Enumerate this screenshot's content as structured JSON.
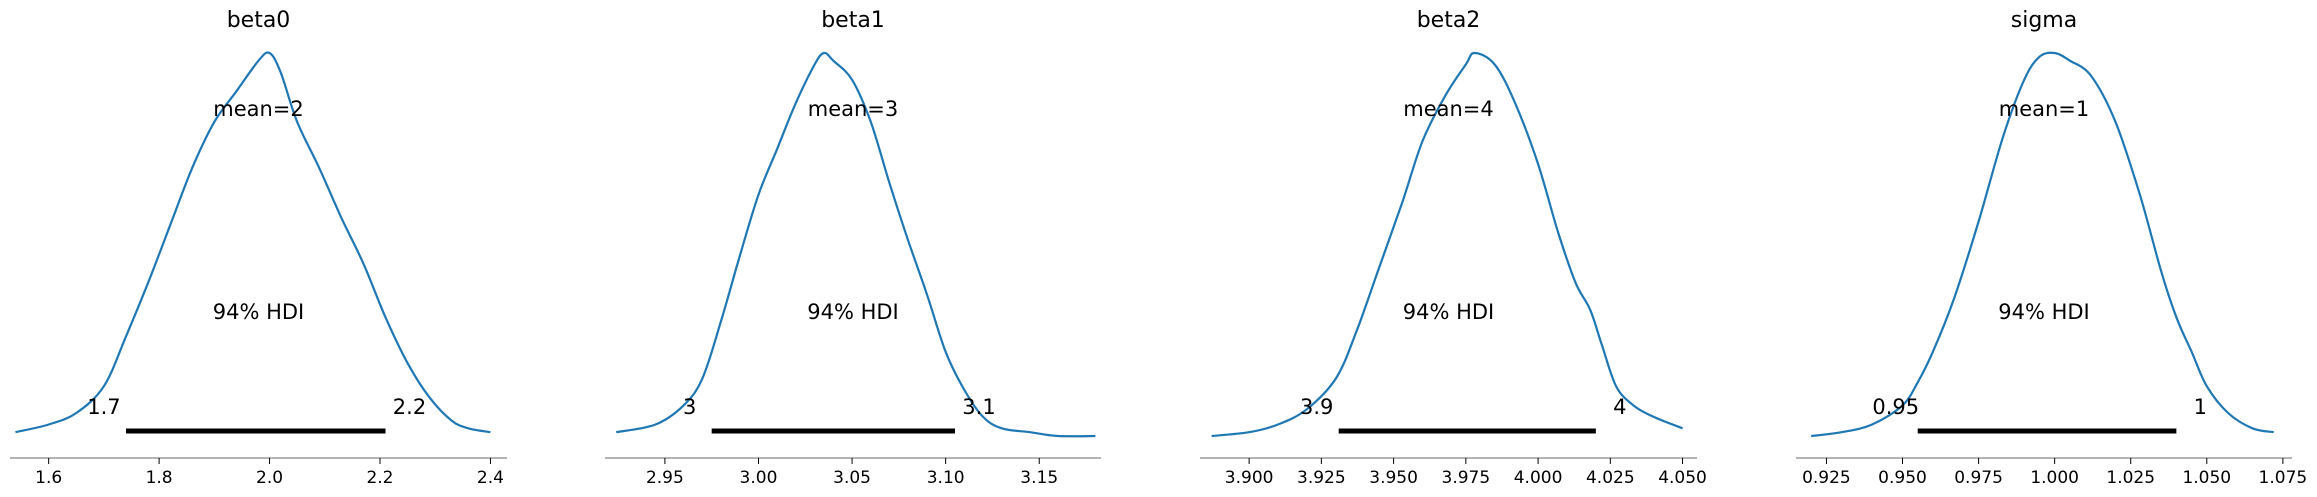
{
  "chart_data": [
    {
      "type": "area",
      "title": "beta0",
      "xlim": [
        1.53,
        2.43
      ],
      "xticks": [
        "1.6",
        "1.8",
        "2.0",
        "2.2",
        "2.4"
      ],
      "mean_label": "mean=2",
      "hdi_label": "94% HDI",
      "hdi": [
        1.74,
        2.21
      ],
      "hdi_labels": [
        "1.7",
        "2.2"
      ],
      "x": [
        1.54,
        1.6,
        1.65,
        1.7,
        1.74,
        1.78,
        1.82,
        1.86,
        1.9,
        1.94,
        1.98,
        2.0,
        2.02,
        2.05,
        2.09,
        2.13,
        2.17,
        2.21,
        2.25,
        2.29,
        2.33,
        2.36,
        2.4
      ],
      "density": [
        0.01,
        0.03,
        0.06,
        0.13,
        0.26,
        0.4,
        0.55,
        0.7,
        0.82,
        0.9,
        0.98,
        1.0,
        0.95,
        0.82,
        0.7,
        0.57,
        0.45,
        0.31,
        0.19,
        0.1,
        0.04,
        0.02,
        0.01
      ]
    },
    {
      "type": "area",
      "title": "beta1",
      "xlim": [
        2.918,
        3.183
      ],
      "xticks": [
        "2.95",
        "3.00",
        "3.05",
        "3.10",
        "3.15"
      ],
      "mean_label": "mean=3",
      "hdi_label": "94% HDI",
      "hdi": [
        2.975,
        3.105
      ],
      "hdi_labels": [
        "3",
        "3.1"
      ],
      "x": [
        2.924,
        2.945,
        2.96,
        2.97,
        2.98,
        2.99,
        3.0,
        3.01,
        3.02,
        3.03,
        3.035,
        3.04,
        3.05,
        3.06,
        3.07,
        3.08,
        3.09,
        3.1,
        3.11,
        3.12,
        3.13,
        3.145,
        3.16,
        3.18
      ],
      "density": [
        0.01,
        0.03,
        0.08,
        0.15,
        0.3,
        0.47,
        0.63,
        0.75,
        0.87,
        0.97,
        1.0,
        0.98,
        0.93,
        0.82,
        0.66,
        0.51,
        0.37,
        0.22,
        0.12,
        0.05,
        0.02,
        0.01,
        0.0,
        0.0
      ]
    },
    {
      "type": "area",
      "title": "beta2",
      "xlim": [
        3.883,
        4.055
      ],
      "xticks": [
        "3.900",
        "3.925",
        "3.950",
        "3.975",
        "4.000",
        "4.025",
        "4.050"
      ],
      "mean_label": "mean=4",
      "hdi_label": "94% HDI",
      "hdi": [
        3.931,
        4.02
      ],
      "hdi_labels": [
        "3.9",
        "4"
      ],
      "x": [
        3.887,
        3.9,
        3.91,
        3.92,
        3.93,
        3.937,
        3.945,
        3.953,
        3.96,
        3.968,
        3.975,
        3.978,
        3.985,
        3.992,
        4.0,
        4.007,
        4.013,
        4.018,
        4.022,
        4.027,
        4.033,
        4.04,
        4.05
      ],
      "density": [
        0.0,
        0.01,
        0.03,
        0.07,
        0.15,
        0.27,
        0.44,
        0.61,
        0.77,
        0.89,
        0.97,
        1.0,
        0.97,
        0.87,
        0.71,
        0.53,
        0.4,
        0.33,
        0.24,
        0.13,
        0.08,
        0.05,
        0.02
      ]
    },
    {
      "type": "area",
      "title": "sigma",
      "xlim": [
        0.915,
        1.078
      ],
      "xticks": [
        "0.925",
        "0.950",
        "0.975",
        "1.000",
        "1.025",
        "1.050",
        "1.075"
      ],
      "mean_label": "mean=1",
      "hdi_label": "94% HDI",
      "hdi": [
        0.955,
        1.04
      ],
      "hdi_labels": [
        "0.95",
        "1"
      ],
      "x": [
        0.92,
        0.93,
        0.94,
        0.95,
        0.955,
        0.96,
        0.967,
        0.975,
        0.983,
        0.99,
        0.995,
        1.0,
        1.005,
        1.012,
        1.02,
        1.028,
        1.035,
        1.04,
        1.045,
        1.05,
        1.057,
        1.065,
        1.072
      ],
      "density": [
        0.0,
        0.01,
        0.03,
        0.08,
        0.14,
        0.22,
        0.36,
        0.56,
        0.78,
        0.93,
        0.99,
        1.0,
        0.98,
        0.94,
        0.82,
        0.63,
        0.43,
        0.31,
        0.22,
        0.13,
        0.06,
        0.02,
        0.01
      ]
    }
  ],
  "colors": {
    "curve": "#1f77b4",
    "hdi_bar": "#000000",
    "axis": "#888888"
  }
}
